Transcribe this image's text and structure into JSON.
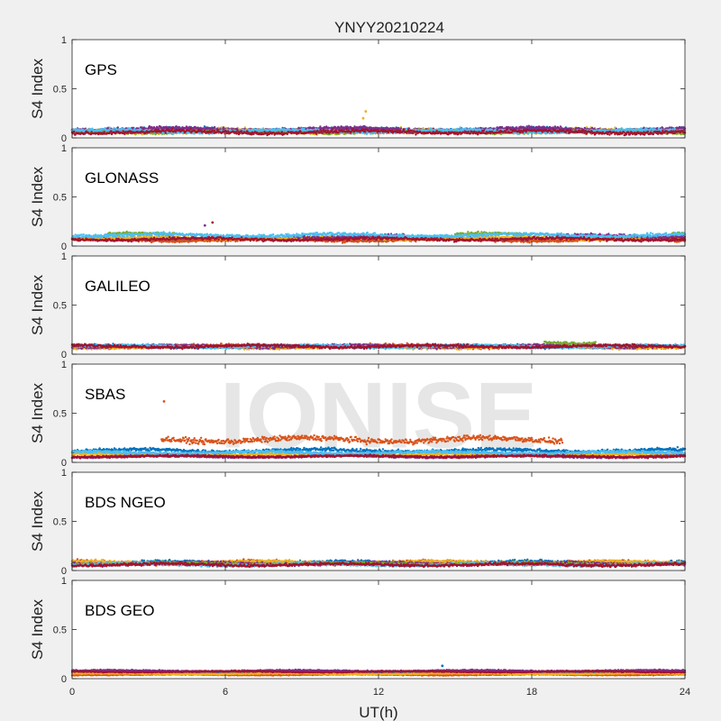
{
  "figure": {
    "title": "YNYY20210224",
    "xlabel": "UT(h)",
    "ylabel": "S4 Index",
    "watermark": "IONISE",
    "watermark_panel": 3
  },
  "chart_data": {
    "type": "scatter",
    "xlim": [
      0,
      24
    ],
    "ylim": [
      0,
      1
    ],
    "xticks": [
      "0",
      "6",
      "12",
      "18",
      "24"
    ],
    "yticks": [
      "0",
      "0.5",
      "1"
    ],
    "grid": false,
    "palette": [
      "#0072BD",
      "#D95319",
      "#EDB120",
      "#7E2F8E",
      "#77AC30",
      "#4DBEEE",
      "#A2142F"
    ],
    "panels": [
      {
        "label": "GPS",
        "series": [
          {
            "color": "#0072BD",
            "base": 0.08,
            "noise": 0.03,
            "segments": [
              [
                0,
                24
              ]
            ]
          },
          {
            "color": "#D95319",
            "base": 0.07,
            "noise": 0.025,
            "segments": [
              [
                0,
                24
              ]
            ]
          },
          {
            "color": "#EDB120",
            "base": 0.07,
            "noise": 0.03,
            "segments": [
              [
                0,
                24
              ]
            ]
          },
          {
            "color": "#7E2F8E",
            "base": 0.09,
            "noise": 0.025,
            "segments": [
              [
                0,
                24
              ]
            ]
          },
          {
            "color": "#77AC30",
            "base": 0.06,
            "noise": 0.02,
            "segments": [
              [
                0,
                24
              ]
            ]
          },
          {
            "color": "#4DBEEE",
            "base": 0.07,
            "noise": 0.025,
            "segments": [
              [
                0,
                24
              ]
            ]
          },
          {
            "color": "#A2142F",
            "base": 0.06,
            "noise": 0.025,
            "segments": [
              [
                0,
                24
              ]
            ]
          }
        ],
        "highlights": [
          {
            "x": 11.5,
            "y": 0.27,
            "color": "#EDB120"
          },
          {
            "x": 11.4,
            "y": 0.2,
            "color": "#EDB120"
          }
        ]
      },
      {
        "label": "GLONASS",
        "series": [
          {
            "color": "#0072BD",
            "base": 0.07,
            "noise": 0.02,
            "segments": [
              [
                0,
                24
              ]
            ]
          },
          {
            "color": "#D95319",
            "base": 0.06,
            "noise": 0.02,
            "segments": [
              [
                0,
                24
              ]
            ]
          },
          {
            "color": "#EDB120",
            "base": 0.08,
            "noise": 0.02,
            "segments": [
              [
                0,
                24
              ]
            ]
          },
          {
            "color": "#7E2F8E",
            "base": 0.1,
            "noise": 0.025,
            "segments": [
              [
                8.7,
                13
              ],
              [
                19,
                24
              ]
            ]
          },
          {
            "color": "#77AC30",
            "base": 0.12,
            "noise": 0.02,
            "segments": [
              [
                1.4,
                4
              ],
              [
                15,
                18
              ],
              [
                23.5,
                24
              ]
            ]
          },
          {
            "color": "#4DBEEE",
            "base": 0.11,
            "noise": 0.025,
            "segments": [
              [
                0,
                24
              ]
            ]
          },
          {
            "color": "#A2142F",
            "base": 0.07,
            "noise": 0.02,
            "segments": [
              [
                0,
                24
              ]
            ]
          }
        ],
        "highlights": [
          {
            "x": 5.5,
            "y": 0.24,
            "color": "#A2142F"
          },
          {
            "x": 5.2,
            "y": 0.21,
            "color": "#7E2F8E"
          }
        ]
      },
      {
        "label": "GALILEO",
        "series": [
          {
            "color": "#0072BD",
            "base": 0.08,
            "noise": 0.02,
            "segments": [
              [
                0,
                24
              ]
            ]
          },
          {
            "color": "#D95319",
            "base": 0.08,
            "noise": 0.025,
            "segments": [
              [
                0,
                24
              ]
            ]
          },
          {
            "color": "#EDB120",
            "base": 0.07,
            "noise": 0.02,
            "segments": [
              [
                0,
                24
              ]
            ]
          },
          {
            "color": "#7E2F8E",
            "base": 0.08,
            "noise": 0.02,
            "segments": [
              [
                0,
                24
              ]
            ]
          },
          {
            "color": "#77AC30",
            "base": 0.12,
            "noise": 0.02,
            "segments": [
              [
                18.5,
                20.5
              ]
            ]
          },
          {
            "color": "#4DBEEE",
            "base": 0.08,
            "noise": 0.02,
            "segments": [
              [
                0,
                24
              ]
            ]
          },
          {
            "color": "#A2142F",
            "base": 0.08,
            "noise": 0.02,
            "segments": [
              [
                0,
                24
              ]
            ]
          }
        ],
        "highlights": []
      },
      {
        "label": "SBAS",
        "series": [
          {
            "color": "#0072BD",
            "base": 0.12,
            "noise": 0.025,
            "segments": [
              [
                0,
                24
              ]
            ]
          },
          {
            "color": "#D95319",
            "base": 0.23,
            "noise": 0.04,
            "segments": [
              [
                3.5,
                19.2
              ]
            ]
          },
          {
            "color": "#EDB120",
            "base": 0.08,
            "noise": 0.015,
            "segments": [
              [
                0,
                24
              ]
            ]
          },
          {
            "color": "#7E2F8E",
            "base": 0.06,
            "noise": 0.015,
            "segments": [
              [
                0,
                24
              ]
            ]
          },
          {
            "color": "#4DBEEE",
            "base": 0.1,
            "noise": 0.02,
            "segments": [
              [
                0,
                24
              ]
            ]
          },
          {
            "color": "#A2142F",
            "base": 0.06,
            "noise": 0.015,
            "segments": [
              [
                0,
                24
              ]
            ]
          }
        ],
        "highlights": [
          {
            "x": 3.6,
            "y": 0.62,
            "color": "#D95319"
          }
        ]
      },
      {
        "label": "BDS NGEO",
        "series": [
          {
            "color": "#0072BD",
            "base": 0.08,
            "noise": 0.025,
            "segments": [
              [
                0,
                24
              ]
            ]
          },
          {
            "color": "#D95319",
            "base": 0.08,
            "noise": 0.025,
            "segments": [
              [
                0,
                24
              ]
            ]
          },
          {
            "color": "#EDB120",
            "base": 0.08,
            "noise": 0.025,
            "segments": [
              [
                0,
                24
              ]
            ]
          },
          {
            "color": "#7E2F8E",
            "base": 0.07,
            "noise": 0.02,
            "segments": [
              [
                0,
                24
              ]
            ]
          },
          {
            "color": "#77AC30",
            "base": 0.07,
            "noise": 0.02,
            "segments": [
              [
                0,
                24
              ]
            ]
          },
          {
            "color": "#4DBEEE",
            "base": 0.06,
            "noise": 0.02,
            "segments": [
              [
                0,
                24
              ]
            ]
          },
          {
            "color": "#A2142F",
            "base": 0.06,
            "noise": 0.02,
            "segments": [
              [
                0,
                24
              ]
            ]
          }
        ],
        "highlights": []
      },
      {
        "label": "BDS GEO",
        "series": [
          {
            "color": "#0072BD",
            "base": 0.06,
            "noise": 0.008,
            "segments": [
              [
                0,
                24
              ]
            ]
          },
          {
            "color": "#D95319",
            "base": 0.04,
            "noise": 0.008,
            "segments": [
              [
                0,
                24
              ]
            ]
          },
          {
            "color": "#EDB120",
            "base": 0.05,
            "noise": 0.008,
            "segments": [
              [
                0,
                24
              ]
            ]
          },
          {
            "color": "#7E2F8E",
            "base": 0.08,
            "noise": 0.01,
            "segments": [
              [
                0,
                24
              ]
            ]
          },
          {
            "color": "#A2142F",
            "base": 0.07,
            "noise": 0.008,
            "segments": [
              [
                0,
                24
              ]
            ]
          }
        ],
        "highlights": [
          {
            "x": 14.5,
            "y": 0.13,
            "color": "#0072BD"
          }
        ]
      }
    ]
  }
}
